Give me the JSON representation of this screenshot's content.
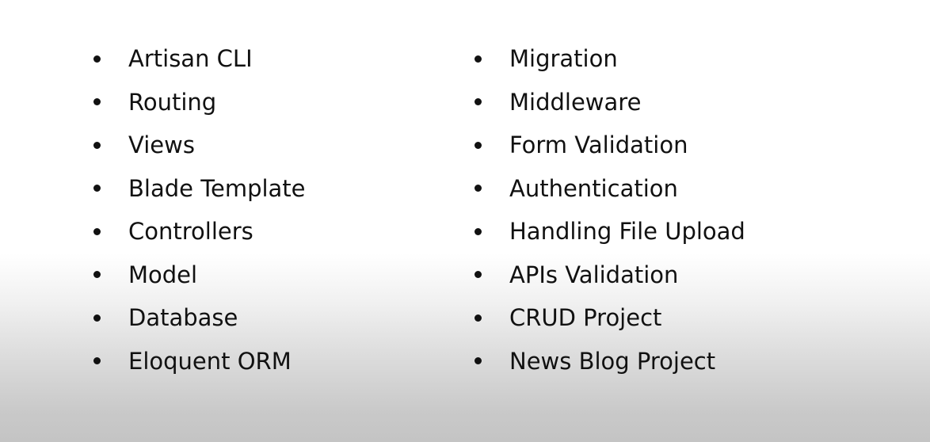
{
  "left_column": {
    "items": [
      {
        "label": "Artisan CLI"
      },
      {
        "label": "Routing"
      },
      {
        "label": "Views"
      },
      {
        "label": "Blade Template"
      },
      {
        "label": "Controllers"
      },
      {
        "label": "Model"
      },
      {
        "label": "Database"
      },
      {
        "label": "Eloquent ORM"
      }
    ]
  },
  "right_column": {
    "items": [
      {
        "label": "Migration"
      },
      {
        "label": "Middleware"
      },
      {
        "label": "Form Validation"
      },
      {
        "label": "Authentication"
      },
      {
        "label": "Handling File Upload"
      },
      {
        "label": "APIs Validation"
      },
      {
        "label": "CRUD Project"
      },
      {
        "label": "News Blog Project"
      }
    ]
  },
  "colors": {
    "text": "#111111",
    "background_top": "#ffffff",
    "background_bottom": "#c4c4c4"
  }
}
